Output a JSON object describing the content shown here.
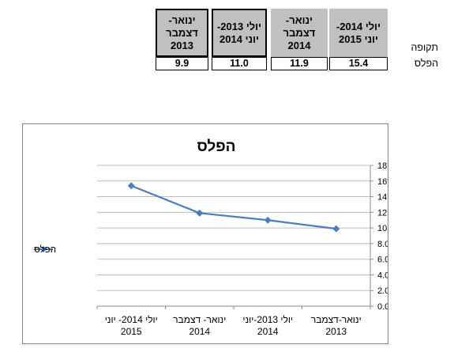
{
  "table": {
    "row_label_period": "תקופה",
    "row_label_loss": "הפלס",
    "columns": [
      {
        "period": "ינואר- דצמבר 2013",
        "value": "9.9"
      },
      {
        "period": "יולי 2013- יוני 2014",
        "value": "11.0"
      },
      {
        "period": "ינואר- דצמבר 2014",
        "value": "11.9"
      },
      {
        "period": "יולי 2014- יוני 2015",
        "value": "15.4"
      }
    ]
  },
  "colors": {
    "series": "#4a7ebb",
    "grid": "#bfbfbf",
    "header_fill": "#c0c0c0"
  },
  "chart_data": {
    "type": "line",
    "title": "הפלס",
    "categories": [
      "ינואר-דצמבר 2013",
      "יולי 2013-יוני 2014",
      "ינואר- דצמבר 2014",
      "יולי 2014- יוני 2015"
    ],
    "series": [
      {
        "name": "הפלס",
        "values": [
          9.9,
          11.0,
          11.9,
          15.4
        ],
        "marker": "diamond"
      }
    ],
    "ylim": [
      0,
      18
    ],
    "yticks": [
      "0.0",
      "2.0",
      "4.0",
      "6.0",
      "8.0",
      "10.0",
      "12.0",
      "14.0",
      "16.0",
      "18.0"
    ],
    "y_axis_side": "right",
    "x_axis_reversed": true,
    "grid": true,
    "legend_position": "left"
  }
}
